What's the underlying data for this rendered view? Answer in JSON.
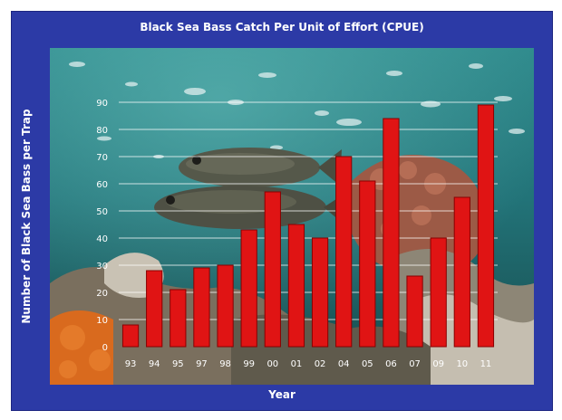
{
  "colors": {
    "frame": "#2c3aa6",
    "bar": "#e01414",
    "bar_edge": "#8a0000",
    "gridline": "#ffffff",
    "label_text": "#ffffff"
  },
  "background_photo": "underwater scene with two black sea bass, small fish, coral and orange sponges",
  "chart_data": {
    "type": "bar",
    "title": "Black Sea Bass Catch Per Unit of Effort (CPUE)",
    "xlabel": "Year",
    "ylabel": "Number of Black Sea Bass per Trap",
    "ylim": [
      0,
      90
    ],
    "yticks": [
      0,
      10,
      20,
      30,
      40,
      50,
      60,
      70,
      80,
      90
    ],
    "grid": true,
    "legend": "none",
    "categories": [
      "93",
      "94",
      "95",
      "97",
      "98",
      "99",
      "00",
      "01",
      "02",
      "04",
      "05",
      "06",
      "07",
      "09",
      "10",
      "11"
    ],
    "values": [
      8,
      28,
      21,
      29,
      30,
      43,
      57,
      45,
      40,
      70,
      61,
      84,
      26,
      40,
      55,
      89
    ]
  }
}
